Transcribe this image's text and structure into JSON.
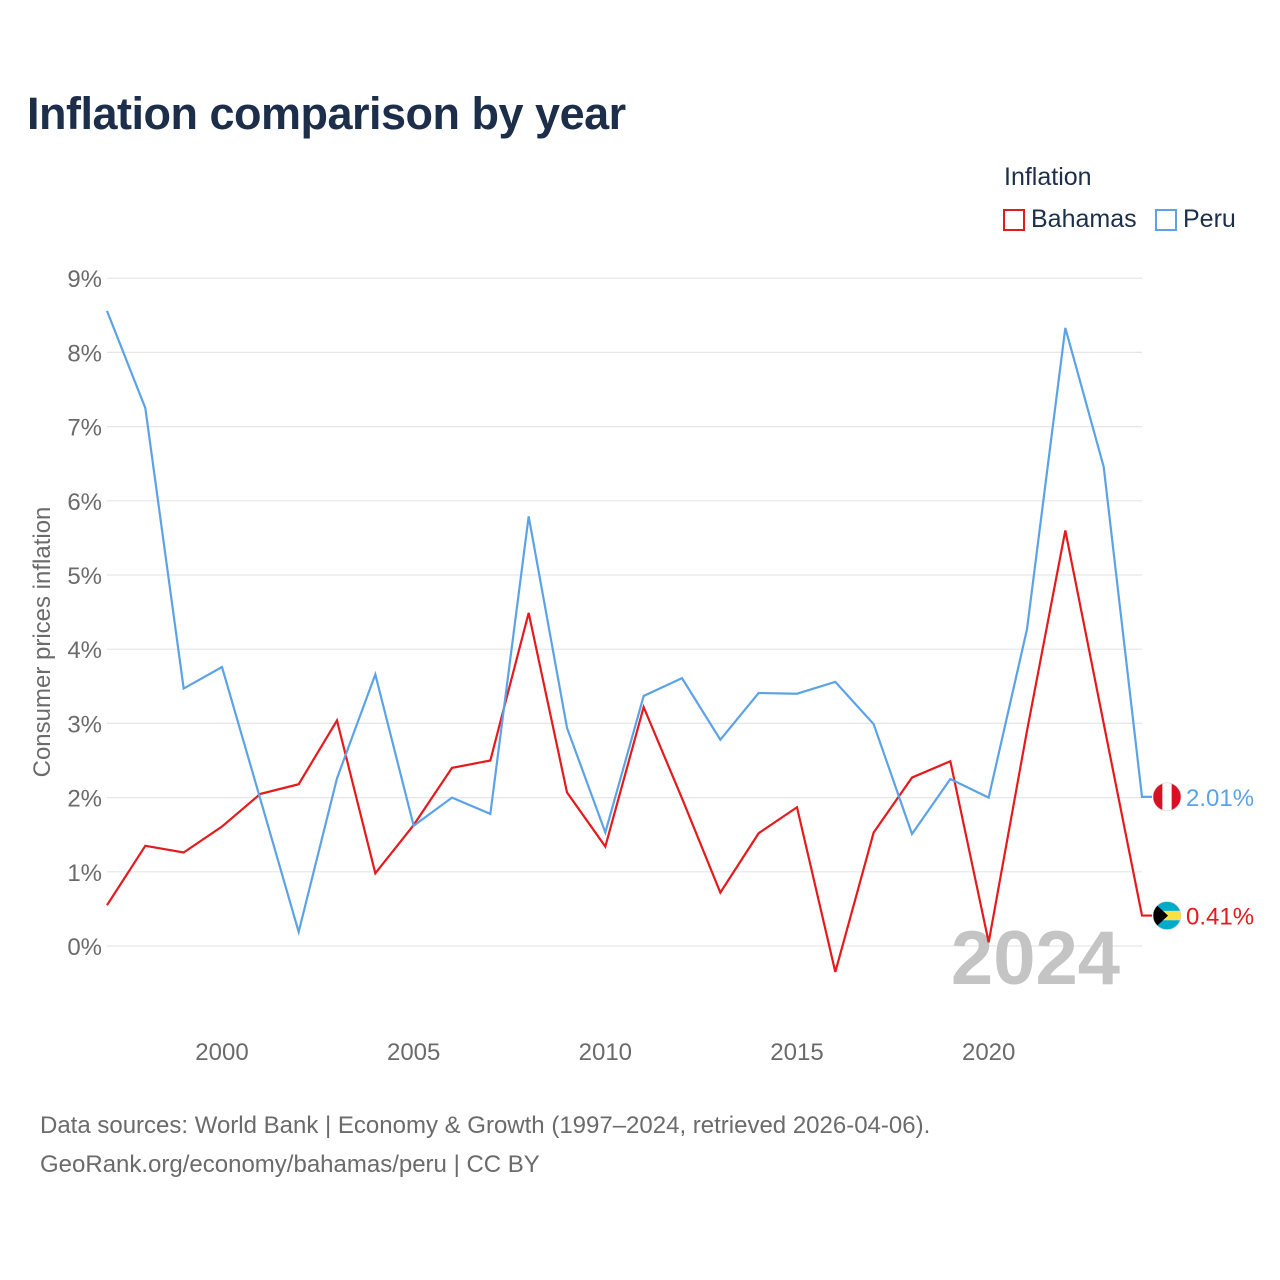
{
  "chart_data": {
    "type": "line",
    "title": "Inflation comparison by year",
    "legend_title": "Inflation",
    "xlabel": "",
    "ylabel": "Consumer prices inflation",
    "x": [
      1997,
      1998,
      1999,
      2000,
      2001,
      2002,
      2003,
      2004,
      2005,
      2006,
      2007,
      2008,
      2009,
      2010,
      2011,
      2012,
      2013,
      2014,
      2015,
      2016,
      2017,
      2018,
      2019,
      2020,
      2021,
      2022,
      2023,
      2024
    ],
    "xlim": [
      1997,
      2024
    ],
    "ylim": [
      -0.9,
      9
    ],
    "x_ticks": [
      {
        "value": 2000,
        "label": "2000"
      },
      {
        "value": 2005,
        "label": "2005"
      },
      {
        "value": 2010,
        "label": "2010"
      },
      {
        "value": 2015,
        "label": "2015"
      },
      {
        "value": 2020,
        "label": "2020"
      }
    ],
    "y_ticks": [
      {
        "value": 0,
        "label": "0%"
      },
      {
        "value": 1,
        "label": "1%"
      },
      {
        "value": 2,
        "label": "2%"
      },
      {
        "value": 3,
        "label": "3%"
      },
      {
        "value": 4,
        "label": "4%"
      },
      {
        "value": 5,
        "label": "5%"
      },
      {
        "value": 6,
        "label": "6%"
      },
      {
        "value": 7,
        "label": "7%"
      },
      {
        "value": 8,
        "label": "8%"
      },
      {
        "value": 9,
        "label": "9%"
      }
    ],
    "grid": true,
    "legend_position": "top-right",
    "watermark_year": "2024",
    "series": [
      {
        "name": "Bahamas",
        "color": "#e41a1c",
        "flag_icon": "bahamas-flag-icon",
        "end_label": "0.41%",
        "values": [
          0.55,
          1.35,
          1.26,
          1.61,
          2.05,
          2.18,
          3.04,
          0.98,
          1.63,
          2.4,
          2.5,
          4.49,
          2.07,
          1.34,
          3.22,
          1.99,
          0.72,
          1.52,
          1.87,
          -0.35,
          1.53,
          2.27,
          2.49,
          0.05,
          2.9,
          5.6,
          3.0,
          0.41
        ]
      },
      {
        "name": "Peru",
        "color": "#5ba3e6",
        "flag_icon": "peru-flag-icon",
        "end_label": "2.01%",
        "values": [
          8.56,
          7.25,
          3.47,
          3.76,
          1.98,
          0.19,
          2.26,
          3.66,
          1.62,
          2.0,
          1.78,
          5.79,
          2.94,
          1.53,
          3.37,
          3.61,
          2.78,
          3.41,
          3.4,
          3.56,
          2.99,
          1.51,
          2.25,
          2.0,
          4.27,
          8.33,
          6.46,
          2.01
        ]
      }
    ]
  },
  "footer": {
    "sources": "Data sources: World Bank | Economy & Growth (1997–2024, retrieved 2026-04-06).",
    "credit": "GeoRank.org/economy/bahamas/peru | CC BY"
  }
}
